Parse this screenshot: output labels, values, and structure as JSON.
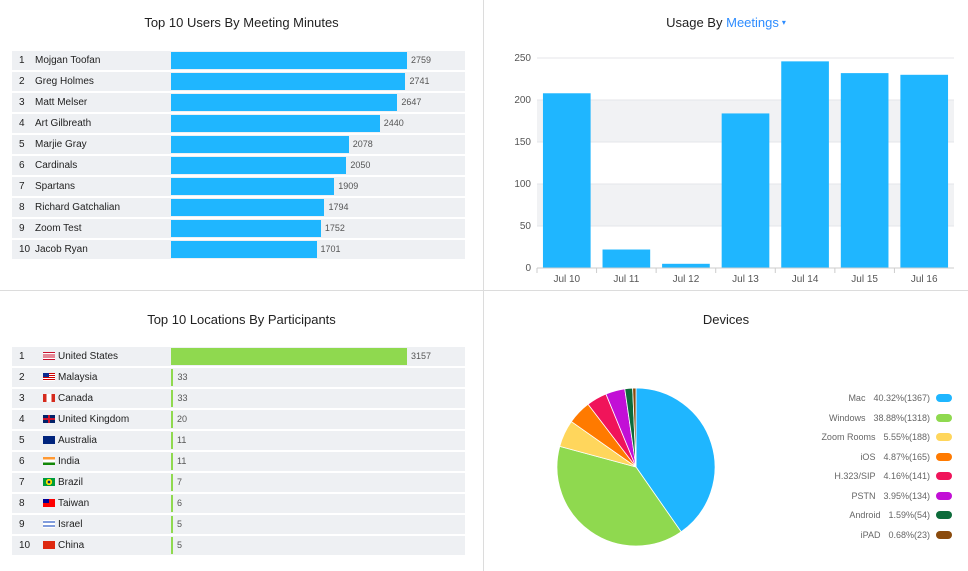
{
  "users": {
    "title": "Top 10 Users By Meeting Minutes",
    "rows": [
      {
        "rank": "1",
        "name": "Mojgan Toofan",
        "value": 2759
      },
      {
        "rank": "2",
        "name": "Greg Holmes",
        "value": 2741
      },
      {
        "rank": "3",
        "name": "Matt Melser",
        "value": 2647
      },
      {
        "rank": "4",
        "name": "Art Gilbreath",
        "value": 2440
      },
      {
        "rank": "5",
        "name": "Marjie Gray",
        "value": 2078
      },
      {
        "rank": "6",
        "name": "Cardinals",
        "value": 2050
      },
      {
        "rank": "7",
        "name": "Spartans",
        "value": 1909
      },
      {
        "rank": "8",
        "name": "Richard Gatchalian",
        "value": 1794
      },
      {
        "rank": "9",
        "name": "Zoom Test",
        "value": 1752
      },
      {
        "rank": "10",
        "name": "Jacob Ryan",
        "value": 1701
      }
    ]
  },
  "usage": {
    "title_prefix": "Usage By",
    "metric": "Meetings",
    "caret": "▾"
  },
  "locations": {
    "title": "Top 10 Locations By Participants",
    "rows": [
      {
        "rank": "1",
        "name": "United States",
        "flag": "us",
        "value": 3157
      },
      {
        "rank": "2",
        "name": "Malaysia",
        "flag": "my",
        "value": 33
      },
      {
        "rank": "3",
        "name": "Canada",
        "flag": "ca",
        "value": 33
      },
      {
        "rank": "4",
        "name": "United Kingdom",
        "flag": "gb",
        "value": 20
      },
      {
        "rank": "5",
        "name": "Australia",
        "flag": "au",
        "value": 11
      },
      {
        "rank": "6",
        "name": "India",
        "flag": "in",
        "value": 11
      },
      {
        "rank": "7",
        "name": "Brazil",
        "flag": "br",
        "value": 7
      },
      {
        "rank": "8",
        "name": "Taiwan",
        "flag": "tw",
        "value": 6
      },
      {
        "rank": "9",
        "name": "Israel",
        "flag": "il",
        "value": 5
      },
      {
        "rank": "10",
        "name": "China",
        "flag": "cn",
        "value": 5
      }
    ]
  },
  "devices": {
    "title": "Devices"
  },
  "colors": {
    "blue_bar": "#1fb6ff",
    "green_bar": "#8fd94f",
    "accent": "#2d8cff"
  },
  "chart_data": [
    {
      "type": "bar",
      "orientation": "horizontal",
      "title": "Top 10 Users By Meeting Minutes",
      "categories": [
        "Mojgan Toofan",
        "Greg Holmes",
        "Matt Melser",
        "Art Gilbreath",
        "Marjie Gray",
        "Cardinals",
        "Spartans",
        "Richard Gatchalian",
        "Zoom Test",
        "Jacob Ryan"
      ],
      "values": [
        2759,
        2741,
        2647,
        2440,
        2078,
        2050,
        1909,
        1794,
        1752,
        1701
      ]
    },
    {
      "type": "bar",
      "title": "Usage By Meetings",
      "categories": [
        "Jul 10",
        "Jul 11",
        "Jul 12",
        "Jul 13",
        "Jul 14",
        "Jul 15",
        "Jul 16"
      ],
      "values": [
        208,
        22,
        5,
        184,
        246,
        232,
        230
      ],
      "ylim": [
        0,
        250
      ],
      "yticks": [
        0,
        50,
        100,
        150,
        200,
        250
      ],
      "xlabel": "",
      "ylabel": ""
    },
    {
      "type": "bar",
      "orientation": "horizontal",
      "title": "Top 10 Locations By Participants",
      "categories": [
        "United States",
        "Malaysia",
        "Canada",
        "United Kingdom",
        "Australia",
        "India",
        "Brazil",
        "Taiwan",
        "Israel",
        "China"
      ],
      "values": [
        3157,
        33,
        33,
        20,
        11,
        11,
        7,
        6,
        5,
        5
      ]
    },
    {
      "type": "pie",
      "title": "Devices",
      "legend_position": "right",
      "slices": [
        {
          "label": "Mac",
          "pct": "40.32%",
          "count": "(1367)",
          "percent": 40.32,
          "color": "#1fb6ff"
        },
        {
          "label": "Windows",
          "pct": "38.88%",
          "count": "(1318)",
          "percent": 38.88,
          "color": "#8fd94f"
        },
        {
          "label": "Zoom Rooms",
          "pct": "5.55%",
          "count": "(188)",
          "percent": 5.55,
          "color": "#ffd65c"
        },
        {
          "label": "iOS",
          "pct": "4.87%",
          "count": "(165)",
          "percent": 4.87,
          "color": "#ff7a00"
        },
        {
          "label": "H.323/SIP",
          "pct": "4.16%",
          "count": "(141)",
          "percent": 4.16,
          "color": "#f0145a"
        },
        {
          "label": "PSTN",
          "pct": "3.95%",
          "count": "(134)",
          "percent": 3.95,
          "color": "#c20fd6"
        },
        {
          "label": "Android",
          "pct": "1.59%",
          "count": "(54)",
          "percent": 1.59,
          "color": "#0c6b3a"
        },
        {
          "label": "iPAD",
          "pct": "0.68%",
          "count": "(23)",
          "percent": 0.68,
          "color": "#8a4a0c"
        }
      ]
    }
  ]
}
